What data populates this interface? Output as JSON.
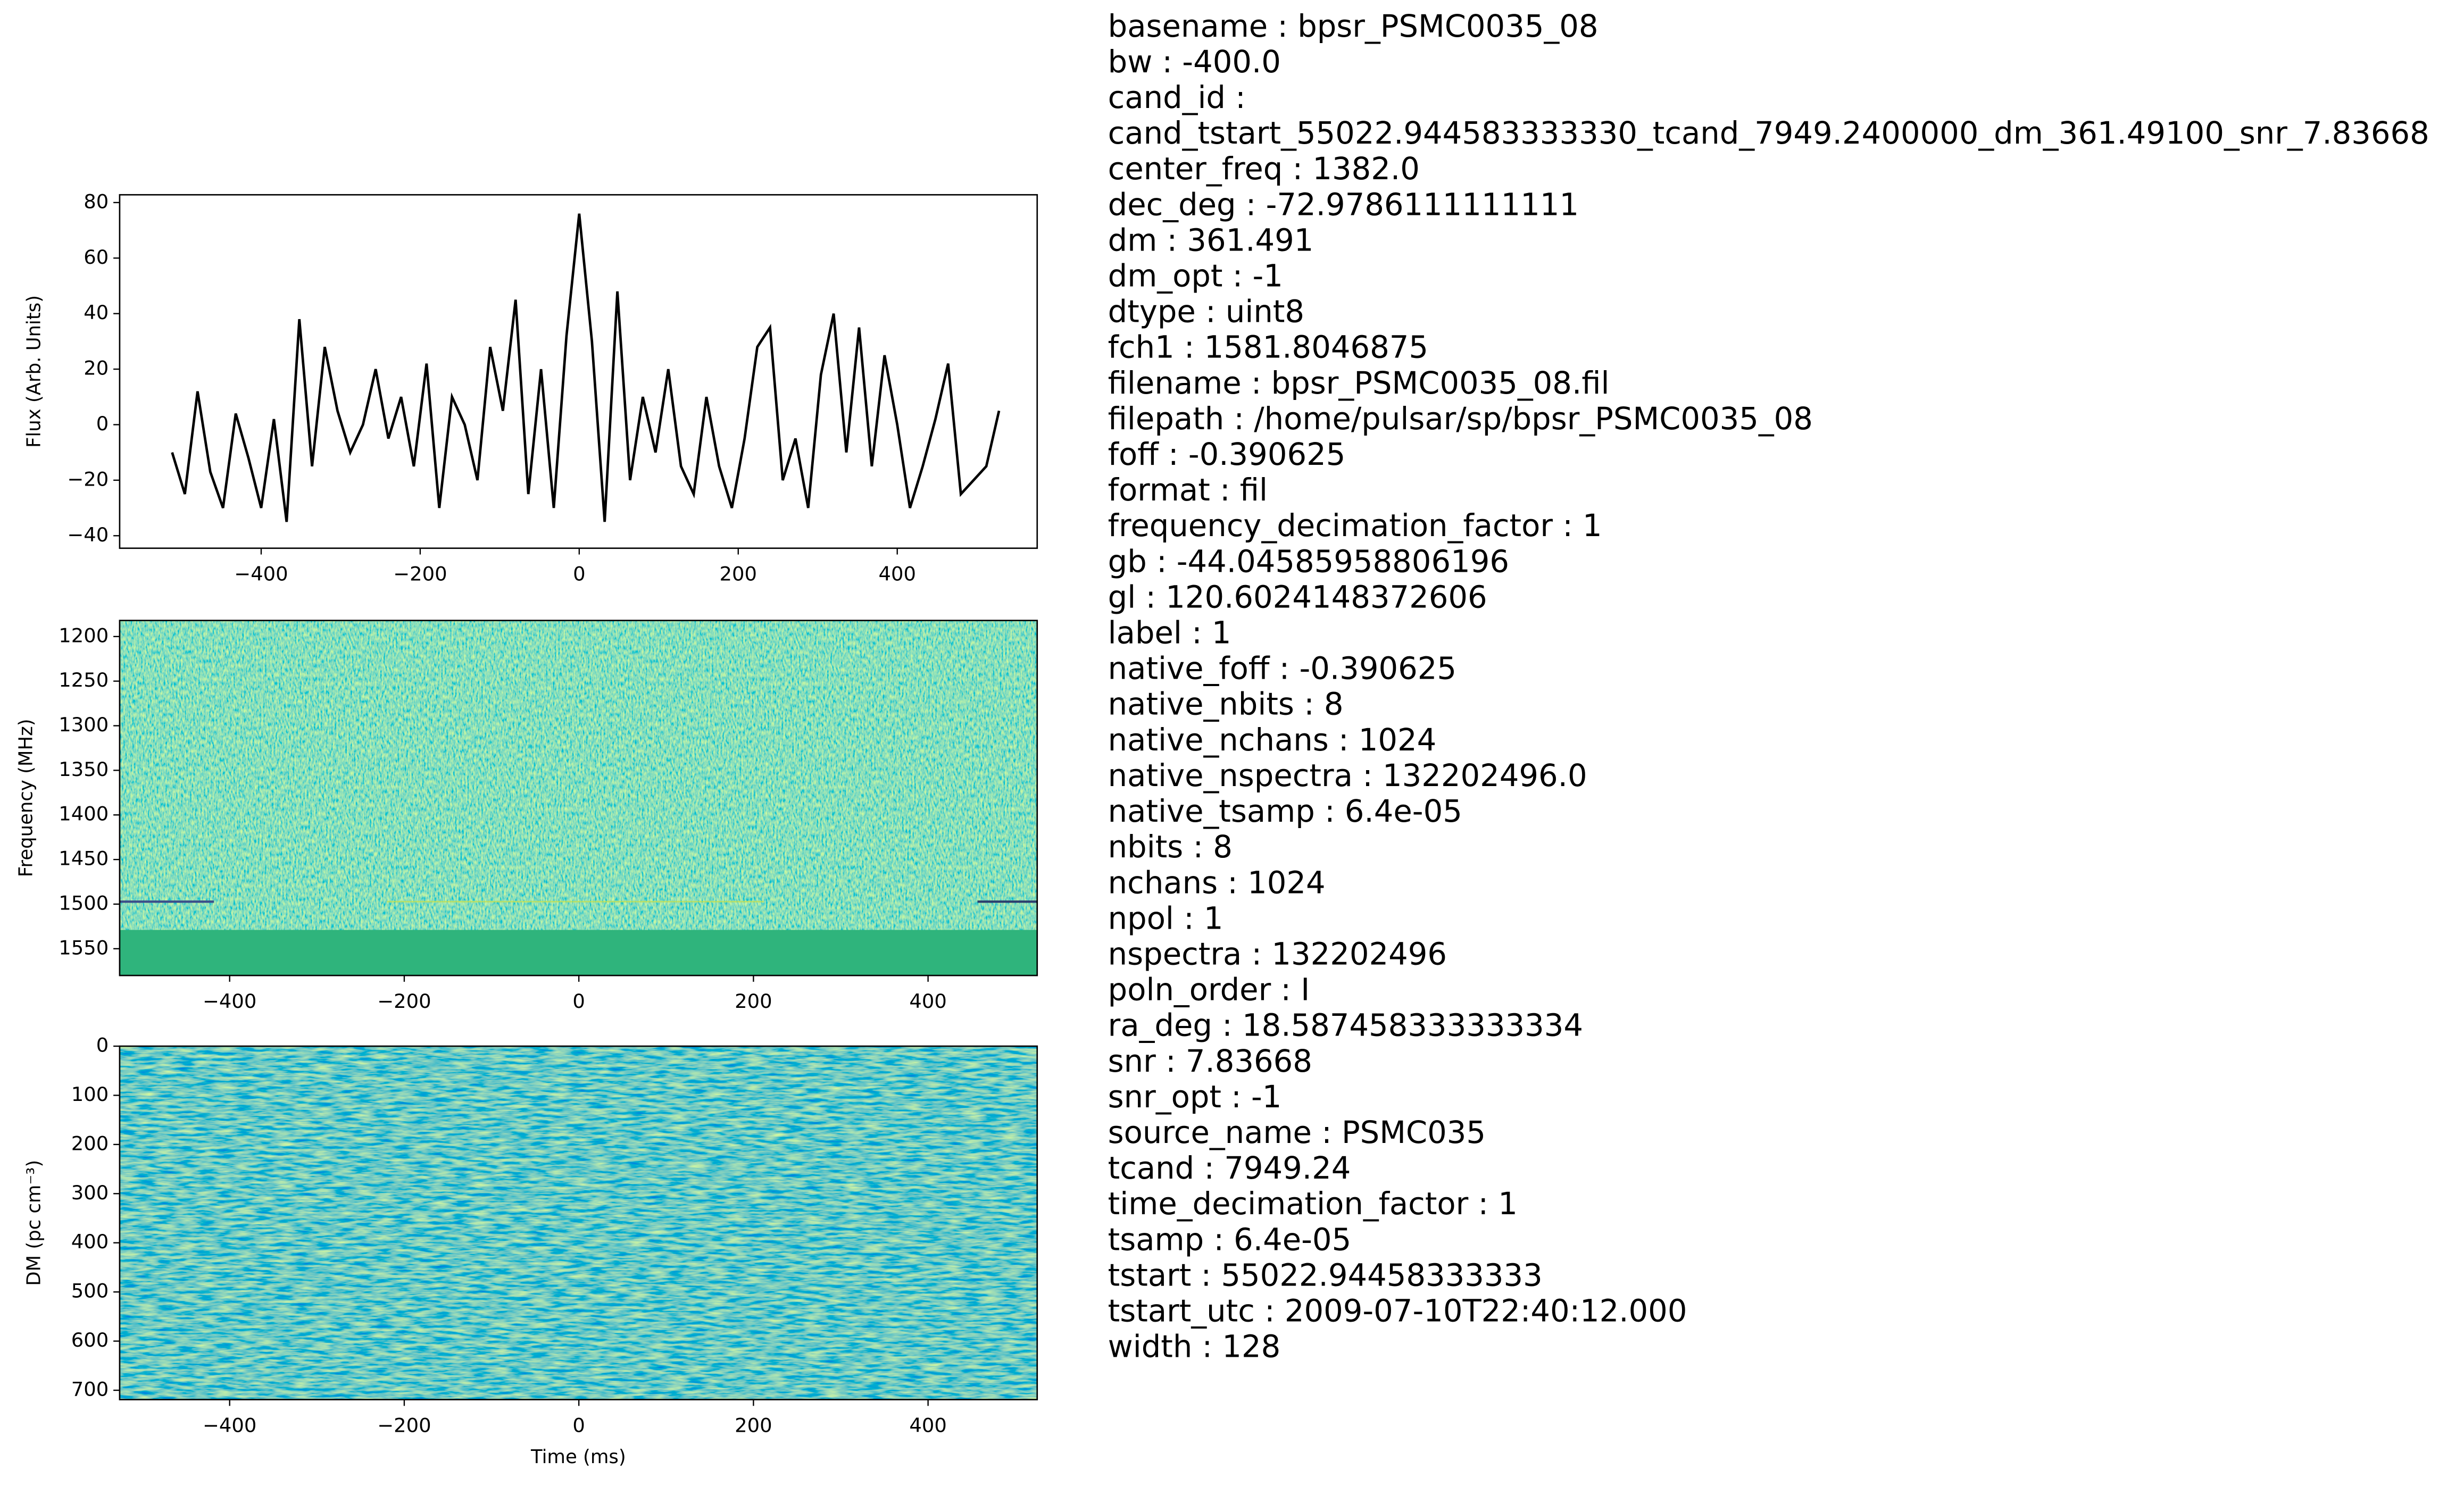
{
  "chart_data": [
    {
      "type": "line",
      "ylabel": "Flux (Arb. Units)",
      "color": "#000000",
      "x": [
        -512,
        -496,
        -480,
        -464,
        -448,
        -432,
        -416,
        -400,
        -384,
        -368,
        -352,
        -336,
        -320,
        -304,
        -288,
        -272,
        -256,
        -240,
        -224,
        -208,
        -192,
        -176,
        -160,
        -144,
        -128,
        -112,
        -96,
        -80,
        -64,
        -48,
        -32,
        -16,
        0,
        16,
        32,
        48,
        64,
        80,
        96,
        112,
        128,
        144,
        160,
        176,
        192,
        208,
        224,
        240,
        256,
        272,
        288,
        304,
        320,
        336,
        352,
        368,
        384,
        400,
        416,
        432,
        448,
        464,
        480,
        496,
        512,
        528
      ],
      "values": [
        -10,
        -25,
        12,
        -17,
        -30,
        4,
        -12,
        -30,
        2,
        -35,
        38,
        -15,
        28,
        5,
        -10,
        0,
        20,
        -5,
        10,
        -15,
        22,
        -30,
        10,
        0,
        -20,
        28,
        5,
        45,
        -25,
        20,
        -30,
        32,
        76,
        30,
        -35,
        48,
        -20,
        10,
        -10,
        20,
        -15,
        -25,
        10,
        -15,
        -30,
        -5,
        28,
        35,
        -20,
        -5,
        -30,
        18,
        40,
        -10,
        35,
        -15,
        25,
        0,
        -30,
        -15,
        2,
        22,
        -25,
        -20,
        -15,
        5
      ],
      "xlim": [
        -578,
        576
      ],
      "ylim": [
        -44.5,
        82.8
      ],
      "xticks": [
        {
          "value": -400,
          "label": "−400"
        },
        {
          "value": -200,
          "label": "−200"
        },
        0,
        200,
        400
      ],
      "yticks": [
        {
          "value": -40,
          "label": "−40"
        },
        {
          "value": -20,
          "label": "−20"
        },
        0,
        20,
        40,
        60,
        80
      ]
    },
    {
      "type": "heatmap",
      "ylabel": "Frequency (MHz)",
      "xlim": [
        -526,
        525
      ],
      "ylim": [
        1580,
        1182
      ],
      "xticks": [
        {
          "value": -400,
          "label": "−400"
        },
        {
          "value": -200,
          "label": "−200"
        },
        0,
        200,
        400
      ],
      "yticks": [
        1200,
        1250,
        1300,
        1350,
        1400,
        1450,
        1500,
        1550
      ]
    },
    {
      "type": "heatmap",
      "ylabel": "DM (pc cm⁻³)",
      "xlabel": "Time (ms)",
      "xlim": [
        -526,
        525
      ],
      "ylim": [
        719,
        0
      ],
      "xticks": [
        {
          "value": -400,
          "label": "−400"
        },
        {
          "value": -200,
          "label": "−200"
        },
        0,
        200,
        400
      ],
      "yticks": [
        0,
        100,
        200,
        300,
        400,
        500,
        600,
        700
      ]
    }
  ],
  "metadata": [
    "basename : bpsr_PSMC0035_08",
    "bw : -400.0",
    "cand_id :",
    "cand_tstart_55022.944583333330_tcand_7949.2400000_dm_361.49100_snr_7.83668",
    "center_freq : 1382.0",
    "dec_deg : -72.9786111111111",
    "dm : 361.491",
    "dm_opt : -1",
    "dtype : uint8",
    "fch1 : 1581.8046875",
    "filename : bpsr_PSMC0035_08.fil",
    "filepath : /home/pulsar/sp/bpsr_PSMC0035_08",
    "foff : -0.390625",
    "format : fil",
    "frequency_decimation_factor : 1",
    "gb : -44.04585958806196",
    "gl : 120.6024148372606",
    "label : 1",
    "native_foff : -0.390625",
    "native_nbits : 8",
    "native_nchans : 1024",
    "native_nspectra : 132202496.0",
    "native_tsamp : 6.4e-05",
    "nbits : 8",
    "nchans : 1024",
    "npol : 1",
    "nspectra : 132202496",
    "poln_order : I",
    "ra_deg : 18.587458333333334",
    "snr : 7.83668",
    "snr_opt : -1",
    "source_name : PSMC035",
    "tcand : 7949.24",
    "time_decimation_factor : 1",
    "tsamp : 6.4e-05",
    "tstart : 55022.94458333333",
    "tstart_utc : 2009-07-10T22:40:12.000",
    "width : 128"
  ]
}
